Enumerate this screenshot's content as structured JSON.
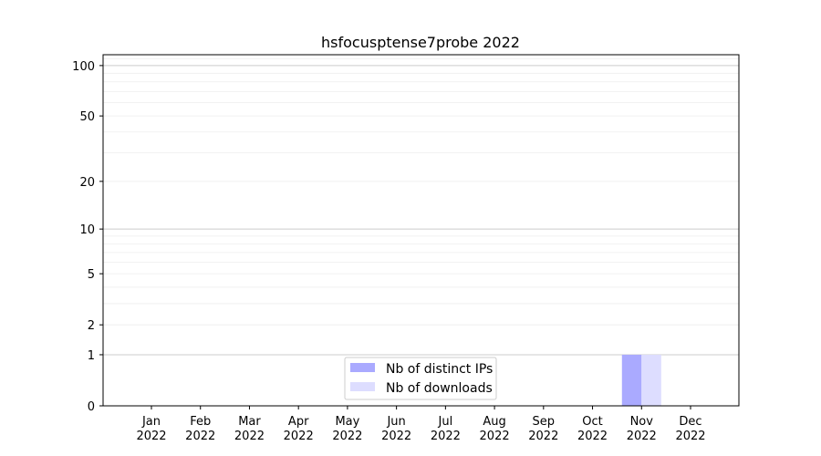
{
  "chart_data": {
    "type": "bar",
    "title": "hsfocusptense7probe 2022",
    "xlabel": "",
    "ylabel": "",
    "yscale": "log(1+y)",
    "ylim": [
      0,
      116
    ],
    "yticks": [
      0,
      1,
      2,
      5,
      10,
      20,
      50,
      100
    ],
    "ytick_labels": [
      "0",
      "1",
      "2",
      "5",
      "10",
      "20",
      "50",
      "100"
    ],
    "categories": [
      "Jan\n2022",
      "Feb\n2022",
      "Mar\n2022",
      "Apr\n2022",
      "May\n2022",
      "Jun\n2022",
      "Jul\n2022",
      "Aug\n2022",
      "Sep\n2022",
      "Oct\n2022",
      "Nov\n2022",
      "Dec\n2022"
    ],
    "xtick_months": [
      "Jan",
      "Feb",
      "Mar",
      "Apr",
      "May",
      "Jun",
      "Jul",
      "Aug",
      "Sep",
      "Oct",
      "Nov",
      "Dec"
    ],
    "xtick_year": "2022",
    "series": [
      {
        "name": "Nb of distinct IPs",
        "color": "#aaaaff",
        "values": [
          0,
          0,
          0,
          0,
          0,
          0,
          0,
          0,
          0,
          0,
          1,
          0
        ]
      },
      {
        "name": "Nb of downloads",
        "color": "#ddddff",
        "values": [
          0,
          0,
          0,
          0,
          0,
          0,
          0,
          0,
          0,
          0,
          1,
          0
        ]
      }
    ],
    "grid": true,
    "legend_position": "bottom-center"
  }
}
